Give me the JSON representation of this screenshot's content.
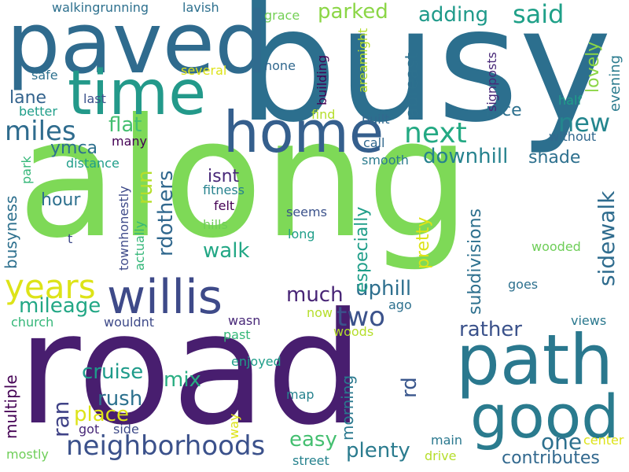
{
  "palette": {
    "background": "#ffffff",
    "colors": [
      "#440154",
      "#482878",
      "#3e4989",
      "#31688e",
      "#26828e",
      "#1f9e89",
      "#35b779",
      "#6ece58",
      "#b5de2b",
      "#fde725"
    ]
  },
  "words": [
    {
      "id": "along",
      "text": "along",
      "color": "#7ed957"
    },
    {
      "id": "road",
      "text": "road",
      "color": "#481e6f"
    },
    {
      "id": "busy",
      "text": "busy",
      "color": "#2c6f8e"
    },
    {
      "id": "paved",
      "text": "paved",
      "color": "#2f6b8e"
    },
    {
      "id": "time",
      "text": "time",
      "color": "#23998a"
    },
    {
      "id": "path",
      "text": "path",
      "color": "#2a788e"
    },
    {
      "id": "good",
      "text": "good",
      "color": "#2a7b8e"
    },
    {
      "id": "home",
      "text": "home",
      "color": "#355f8d"
    },
    {
      "id": "willis",
      "text": "willis",
      "color": "#3e4a89"
    },
    {
      "id": "years",
      "text": "years",
      "color": "#dde318"
    },
    {
      "id": "neighborhoods",
      "text": "neighborhoods",
      "color": "#3b518b"
    },
    {
      "id": "miles",
      "text": "miles",
      "color": "#2f6c8e"
    },
    {
      "id": "sidewalk",
      "text": "sidewalk",
      "color": "#2f6c8e"
    },
    {
      "id": "next",
      "text": "next",
      "color": "#23a983"
    },
    {
      "id": "said",
      "text": "said",
      "color": "#1fa088"
    },
    {
      "id": "two",
      "text": "two",
      "color": "#3b528b"
    },
    {
      "id": "new",
      "text": "new",
      "color": "#24868e"
    },
    {
      "id": "ran",
      "text": "ran",
      "color": "#404387"
    },
    {
      "id": "run",
      "text": "run",
      "color": "#b5de2b"
    },
    {
      "id": "rdothers",
      "text": "rdothers",
      "color": "#31688e"
    },
    {
      "id": "downhill",
      "text": "downhill",
      "color": "#26828e"
    },
    {
      "id": "parked",
      "text": "parked",
      "color": "#8bd646"
    },
    {
      "id": "adding",
      "text": "adding",
      "color": "#1f9a8a"
    },
    {
      "id": "flat",
      "text": "flat",
      "color": "#44bf70"
    },
    {
      "id": "walk",
      "text": "walk",
      "color": "#22a785"
    },
    {
      "id": "much",
      "text": "much",
      "color": "#482576"
    },
    {
      "id": "uphill",
      "text": "uphill",
      "color": "#2e6f8e"
    },
    {
      "id": "mileage",
      "text": "mileage",
      "color": "#22a785"
    },
    {
      "id": "plenty",
      "text": "plenty",
      "color": "#2a7b8e"
    },
    {
      "id": "one",
      "text": "one",
      "color": "#2d708e"
    },
    {
      "id": "contributes",
      "text": "contributes",
      "color": "#31688e"
    },
    {
      "id": "cruise",
      "text": "cruise",
      "color": "#1e9b8a"
    },
    {
      "id": "rush",
      "text": "rush",
      "color": "#2d718e"
    },
    {
      "id": "place",
      "text": "place",
      "color": "#dde318"
    },
    {
      "id": "mix",
      "text": "mix",
      "color": "#27ad81"
    },
    {
      "id": "easy",
      "text": "easy",
      "color": "#44bf70"
    },
    {
      "id": "rather",
      "text": "rather",
      "color": "#3b528b"
    },
    {
      "id": "nice",
      "text": "nice",
      "color": "#2d708e"
    },
    {
      "id": "shade",
      "text": "shade",
      "color": "#2d708e"
    },
    {
      "id": "isnt",
      "text": "isnt",
      "color": "#482878"
    },
    {
      "id": "lane",
      "text": "lane",
      "color": "#33638d"
    },
    {
      "id": "ymca",
      "text": "ymca",
      "color": "#2d708e"
    },
    {
      "id": "hour",
      "text": "hour",
      "color": "#2d708e"
    },
    {
      "id": "rd",
      "text": "rd",
      "color": "#39568c"
    },
    {
      "id": "abreast",
      "text": "abreast",
      "color": "#2d708e"
    },
    {
      "id": "especially",
      "text": "especially",
      "color": "#1f9e89"
    },
    {
      "id": "pretty",
      "text": "pretty",
      "color": "#dde318"
    },
    {
      "id": "subdivisions",
      "text": "subdivisions",
      "color": "#2d708e"
    },
    {
      "id": "busyness",
      "text": "busyness",
      "color": "#2d708e"
    },
    {
      "id": "multiple",
      "text": "multiple",
      "color": "#440154"
    },
    {
      "id": "morning",
      "text": "morning",
      "color": "#2a788e"
    },
    {
      "id": "lovely",
      "text": "lovely",
      "color": "#8bd646"
    },
    {
      "id": "evening",
      "text": "evening",
      "color": "#2a7b8e"
    },
    {
      "id": "walkingrunning",
      "text": "walkingrunning",
      "color": "#2d708e"
    },
    {
      "id": "lavish",
      "text": "lavish",
      "color": "#2d708e"
    },
    {
      "id": "grace",
      "text": "grace",
      "color": "#74d055"
    },
    {
      "id": "none",
      "text": "none",
      "color": "#31688e"
    },
    {
      "id": "several",
      "text": "several",
      "color": "#dde318"
    },
    {
      "id": "safe",
      "text": "safe",
      "color": "#2d708e"
    },
    {
      "id": "building",
      "text": "building",
      "color": "#440154"
    },
    {
      "id": "areamight",
      "text": "areamight",
      "color": "#b5de2b"
    },
    {
      "id": "signposts",
      "text": "signposts",
      "color": "#482878"
    },
    {
      "id": "last",
      "text": "last",
      "color": "#3b518b"
    },
    {
      "id": "better",
      "text": "better",
      "color": "#1f9e89"
    },
    {
      "id": "find",
      "text": "find",
      "color": "#b5de2b"
    },
    {
      "id": "half",
      "text": "half",
      "color": "#1f9e89"
    },
    {
      "id": "built",
      "text": "built",
      "color": "#31688e"
    },
    {
      "id": "call",
      "text": "call",
      "color": "#31688e"
    },
    {
      "id": "without",
      "text": "without",
      "color": "#31688e"
    },
    {
      "id": "many",
      "text": "many",
      "color": "#440154"
    },
    {
      "id": "smooth",
      "text": "smooth",
      "color": "#2a7b8e"
    },
    {
      "id": "distance",
      "text": "distance",
      "color": "#1f9e89"
    },
    {
      "id": "park",
      "text": "park",
      "color": "#35b779"
    },
    {
      "id": "fitness",
      "text": "fitness",
      "color": "#26828e"
    },
    {
      "id": "felt",
      "text": "felt",
      "color": "#440154"
    },
    {
      "id": "seems",
      "text": "seems",
      "color": "#3b528b"
    },
    {
      "id": "t",
      "text": "t",
      "color": "#3e4a89"
    },
    {
      "id": "hills",
      "text": "hills",
      "color": "#6ece58"
    },
    {
      "id": "long",
      "text": "long",
      "color": "#1f9e89"
    },
    {
      "id": "townhonestly",
      "text": "townhonestly",
      "color": "#3e4a89"
    },
    {
      "id": "actually",
      "text": "actually",
      "color": "#35b779"
    },
    {
      "id": "wooded",
      "text": "wooded",
      "color": "#6ece58"
    },
    {
      "id": "goes",
      "text": "goes",
      "color": "#2d708e"
    },
    {
      "id": "ago",
      "text": "ago",
      "color": "#2d708e"
    },
    {
      "id": "now",
      "text": "now",
      "color": "#b5de2b"
    },
    {
      "id": "church",
      "text": "church",
      "color": "#35b779"
    },
    {
      "id": "wouldnt",
      "text": "wouldnt",
      "color": "#3e4a89"
    },
    {
      "id": "wasn",
      "text": "wasn",
      "color": "#482878"
    },
    {
      "id": "past",
      "text": "past",
      "color": "#35b779"
    },
    {
      "id": "woods",
      "text": "woods",
      "color": "#b5de2b"
    },
    {
      "id": "views",
      "text": "views",
      "color": "#2a788e"
    },
    {
      "id": "enjoyed",
      "text": "enjoyed",
      "color": "#1f9e89"
    },
    {
      "id": "map",
      "text": "map",
      "color": "#26828e"
    },
    {
      "id": "way",
      "text": "way",
      "color": "#dde318"
    },
    {
      "id": "got",
      "text": "got",
      "color": "#482878"
    },
    {
      "id": "side",
      "text": "side",
      "color": "#3e4a89"
    },
    {
      "id": "main",
      "text": "main",
      "color": "#2a788e"
    },
    {
      "id": "center",
      "text": "center",
      "color": "#dde318"
    },
    {
      "id": "mostly",
      "text": "mostly",
      "color": "#6ece58"
    },
    {
      "id": "street",
      "text": "street",
      "color": "#26828e"
    },
    {
      "id": "drive",
      "text": "drive",
      "color": "#b5de2b"
    }
  ]
}
